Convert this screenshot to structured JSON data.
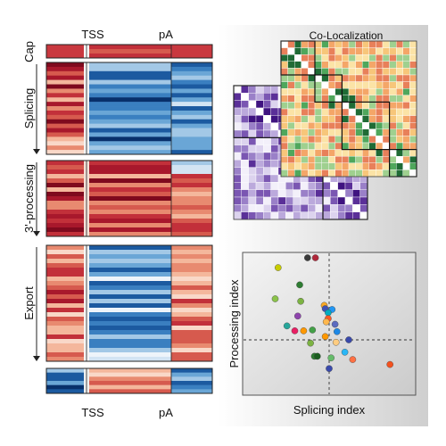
{
  "heatmap": {
    "top_labels": {
      "tss": "TSS",
      "pa": "pA"
    },
    "bottom_labels": {
      "tss": "TSS",
      "pa": "pA"
    },
    "groups": [
      {
        "label": "Cap",
        "rows": 2
      },
      {
        "label": "Splicing",
        "rows": 14
      },
      {
        "label": "3'-processing",
        "rows": 10
      },
      {
        "label": "Export",
        "rows": 16
      },
      {
        "label": "",
        "rows": 3
      }
    ]
  },
  "colocalization": {
    "title": "Co-Localization"
  },
  "scatter": {
    "xlabel": "Splicing index",
    "ylabel": "Processing index",
    "points": [
      {
        "x": -0.22,
        "y": 1.0,
        "color": "#3a3a3a"
      },
      {
        "x": -0.14,
        "y": 1.0,
        "color": "#b0273a"
      },
      {
        "x": -0.55,
        "y": 0.5,
        "color": "#8bc34a"
      },
      {
        "x": -0.3,
        "y": 0.67,
        "color": "#2e7d32"
      },
      {
        "x": -0.29,
        "y": 0.47,
        "color": "#7cb342"
      },
      {
        "x": -0.05,
        "y": 0.42,
        "color": "#f9a825"
      },
      {
        "x": -0.04,
        "y": 0.38,
        "color": "#3f51b5"
      },
      {
        "x": 0.03,
        "y": 0.37,
        "color": "#2196f3"
      },
      {
        "x": -0.01,
        "y": 0.33,
        "color": "#00acc1"
      },
      {
        "x": -0.32,
        "y": 0.29,
        "color": "#8e44ad"
      },
      {
        "x": -0.43,
        "y": 0.17,
        "color": "#26a69a"
      },
      {
        "x": -0.35,
        "y": 0.11,
        "color": "#e91e63"
      },
      {
        "x": -0.26,
        "y": 0.11,
        "color": "#ff9800"
      },
      {
        "x": 0.08,
        "y": 0.1,
        "color": "#1e88e5"
      },
      {
        "x": -0.01,
        "y": 0.26,
        "color": "#ff5722"
      },
      {
        "x": -0.03,
        "y": 0.22,
        "color": "#ffb74d"
      },
      {
        "x": 0.06,
        "y": 0.19,
        "color": "#5c6bc0"
      },
      {
        "x": -0.17,
        "y": 0.12,
        "color": "#43a047"
      },
      {
        "x": -0.04,
        "y": 0.04,
        "color": "#ff9800"
      },
      {
        "x": 0.07,
        "y": -0.03,
        "color": "#ffcc80"
      },
      {
        "x": -0.19,
        "y": -0.04,
        "color": "#7cb342"
      },
      {
        "x": 0.2,
        "y": 0.0,
        "color": "#3949ab"
      },
      {
        "x": 0.16,
        "y": -0.15,
        "color": "#29b6f6"
      },
      {
        "x": -0.15,
        "y": -0.2,
        "color": "#2e7d32"
      },
      {
        "x": -0.12,
        "y": -0.2,
        "color": "#1b5e20"
      },
      {
        "x": 0.02,
        "y": -0.22,
        "color": "#66bb6a"
      },
      {
        "x": 0.24,
        "y": -0.24,
        "color": "#ff7043"
      },
      {
        "x": 0.0,
        "y": -0.35,
        "color": "#3949ab"
      },
      {
        "x": 0.62,
        "y": -0.3,
        "color": "#f4511e"
      },
      {
        "x": -0.52,
        "y": 0.88,
        "color": "#c8cc00"
      }
    ]
  }
}
